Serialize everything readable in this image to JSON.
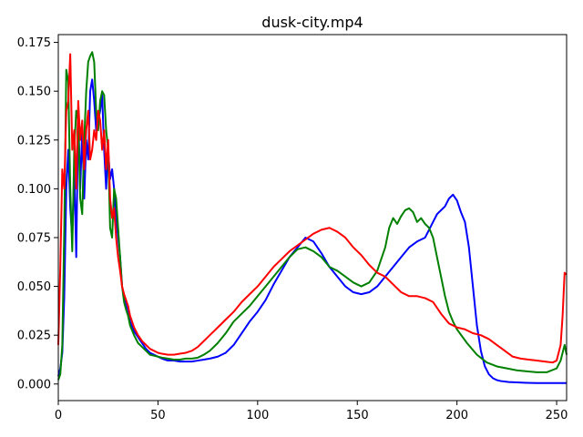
{
  "chart_data": {
    "type": "line",
    "title": "dusk-city.mp4",
    "xlabel": "",
    "ylabel": "",
    "xlim": [
      0,
      255
    ],
    "ylim": [
      -0.0085,
      0.179
    ],
    "grid": false,
    "legend": "none",
    "x_ticks": [
      0,
      50,
      100,
      150,
      200,
      250
    ],
    "x_tick_labels": [
      "0",
      "50",
      "100",
      "150",
      "200",
      "250"
    ],
    "y_ticks": [
      0.0,
      0.025,
      0.05,
      0.075,
      0.1,
      0.125,
      0.15,
      0.175
    ],
    "y_tick_labels": [
      "0.000",
      "0.025",
      "0.050",
      "0.075",
      "0.100",
      "0.125",
      "0.150",
      "0.175"
    ],
    "series": [
      {
        "color": "#0000ff",
        "x": [
          0,
          1,
          2,
          3,
          4,
          5,
          6,
          7,
          8,
          9,
          10,
          11,
          12,
          13,
          14,
          15,
          16,
          17,
          18,
          19,
          20,
          21,
          22,
          23,
          24,
          25,
          26,
          27,
          28,
          29,
          30,
          31,
          32,
          33,
          34,
          35,
          36,
          38,
          40,
          42,
          44,
          46,
          48,
          50,
          52,
          55,
          58,
          61,
          64,
          67,
          70,
          73,
          76,
          80,
          84,
          88,
          92,
          96,
          100,
          104,
          108,
          112,
          116,
          120,
          124,
          128,
          132,
          136,
          140,
          144,
          148,
          152,
          156,
          160,
          164,
          168,
          172,
          176,
          180,
          184,
          186,
          188,
          190,
          192,
          194,
          196,
          198,
          200,
          202,
          204,
          206,
          208,
          210,
          212,
          214,
          216,
          218,
          220,
          222,
          226,
          230,
          235,
          240,
          245,
          250,
          255
        ],
        "y": [
          0.004,
          0.008,
          0.016,
          0.045,
          0.1,
          0.12,
          0.09,
          0.075,
          0.11,
          0.065,
          0.14,
          0.1,
          0.13,
          0.095,
          0.125,
          0.115,
          0.15,
          0.156,
          0.145,
          0.13,
          0.135,
          0.14,
          0.148,
          0.12,
          0.1,
          0.12,
          0.105,
          0.11,
          0.1,
          0.085,
          0.075,
          0.065,
          0.05,
          0.045,
          0.04,
          0.038,
          0.032,
          0.027,
          0.024,
          0.021,
          0.018,
          0.016,
          0.015,
          0.014,
          0.013,
          0.012,
          0.012,
          0.0115,
          0.0115,
          0.0115,
          0.012,
          0.0125,
          0.013,
          0.014,
          0.016,
          0.02,
          0.026,
          0.032,
          0.037,
          0.043,
          0.051,
          0.058,
          0.065,
          0.07,
          0.075,
          0.073,
          0.067,
          0.06,
          0.055,
          0.05,
          0.047,
          0.046,
          0.047,
          0.05,
          0.055,
          0.06,
          0.065,
          0.07,
          0.073,
          0.075,
          0.079,
          0.083,
          0.087,
          0.089,
          0.091,
          0.095,
          0.097,
          0.094,
          0.088,
          0.083,
          0.07,
          0.05,
          0.03,
          0.017,
          0.009,
          0.005,
          0.003,
          0.002,
          0.0015,
          0.001,
          0.0008,
          0.0006,
          0.0005,
          0.0005,
          0.0005,
          0.0005
        ]
      },
      {
        "color": "#008000",
        "x": [
          0,
          1,
          2,
          3,
          4,
          5,
          6,
          7,
          8,
          9,
          10,
          11,
          12,
          13,
          14,
          15,
          16,
          17,
          18,
          19,
          20,
          21,
          22,
          23,
          24,
          25,
          26,
          27,
          28,
          29,
          30,
          31,
          32,
          33,
          34,
          35,
          36,
          38,
          40,
          42,
          44,
          46,
          48,
          50,
          52,
          55,
          58,
          61,
          64,
          67,
          70,
          73,
          76,
          80,
          84,
          88,
          92,
          96,
          100,
          104,
          108,
          112,
          116,
          120,
          124,
          128,
          132,
          136,
          140,
          144,
          148,
          152,
          156,
          160,
          164,
          166,
          168,
          170,
          172,
          174,
          176,
          178,
          180,
          182,
          184,
          186,
          188,
          190,
          192,
          194,
          196,
          198,
          200,
          205,
          210,
          215,
          220,
          225,
          230,
          235,
          240,
          245,
          250,
          252,
          254,
          255
        ],
        "y": [
          0.002,
          0.005,
          0.02,
          0.08,
          0.161,
          0.155,
          0.1,
          0.068,
          0.12,
          0.14,
          0.135,
          0.095,
          0.087,
          0.125,
          0.15,
          0.165,
          0.168,
          0.17,
          0.165,
          0.14,
          0.13,
          0.145,
          0.15,
          0.148,
          0.13,
          0.12,
          0.08,
          0.075,
          0.1,
          0.095,
          0.08,
          0.065,
          0.05,
          0.042,
          0.038,
          0.035,
          0.03,
          0.025,
          0.021,
          0.019,
          0.017,
          0.015,
          0.0145,
          0.014,
          0.0135,
          0.013,
          0.0125,
          0.0125,
          0.013,
          0.013,
          0.0135,
          0.015,
          0.017,
          0.021,
          0.026,
          0.032,
          0.036,
          0.04,
          0.045,
          0.05,
          0.055,
          0.06,
          0.065,
          0.069,
          0.07,
          0.068,
          0.065,
          0.06,
          0.058,
          0.055,
          0.052,
          0.05,
          0.052,
          0.058,
          0.07,
          0.08,
          0.085,
          0.082,
          0.086,
          0.089,
          0.09,
          0.088,
          0.083,
          0.085,
          0.082,
          0.08,
          0.075,
          0.065,
          0.055,
          0.045,
          0.037,
          0.032,
          0.028,
          0.021,
          0.015,
          0.011,
          0.009,
          0.008,
          0.007,
          0.0065,
          0.006,
          0.006,
          0.008,
          0.012,
          0.02,
          0.015
        ]
      },
      {
        "color": "#ff0000",
        "x": [
          0,
          1,
          2,
          3,
          4,
          5,
          6,
          7,
          8,
          9,
          10,
          11,
          12,
          13,
          14,
          15,
          16,
          17,
          18,
          19,
          20,
          21,
          22,
          23,
          24,
          25,
          26,
          27,
          28,
          29,
          30,
          31,
          32,
          33,
          34,
          35,
          36,
          38,
          40,
          42,
          44,
          46,
          48,
          50,
          52,
          55,
          58,
          61,
          64,
          67,
          70,
          73,
          76,
          80,
          84,
          88,
          92,
          96,
          100,
          104,
          108,
          112,
          116,
          120,
          124,
          128,
          132,
          136,
          140,
          144,
          148,
          152,
          156,
          160,
          164,
          168,
          172,
          176,
          180,
          184,
          188,
          192,
          196,
          200,
          204,
          208,
          212,
          216,
          220,
          224,
          228,
          232,
          236,
          240,
          244,
          248,
          250,
          252,
          253,
          254,
          255
        ],
        "y": [
          0.02,
          0.06,
          0.11,
          0.1,
          0.14,
          0.145,
          0.169,
          0.12,
          0.13,
          0.1,
          0.145,
          0.125,
          0.135,
          0.11,
          0.13,
          0.14,
          0.115,
          0.12,
          0.13,
          0.125,
          0.14,
          0.135,
          0.12,
          0.13,
          0.11,
          0.125,
          0.095,
          0.085,
          0.09,
          0.075,
          0.065,
          0.058,
          0.05,
          0.046,
          0.043,
          0.04,
          0.035,
          0.029,
          0.025,
          0.022,
          0.02,
          0.018,
          0.017,
          0.016,
          0.0155,
          0.015,
          0.015,
          0.0155,
          0.016,
          0.017,
          0.019,
          0.022,
          0.025,
          0.029,
          0.033,
          0.037,
          0.042,
          0.046,
          0.05,
          0.055,
          0.06,
          0.064,
          0.068,
          0.071,
          0.074,
          0.077,
          0.079,
          0.08,
          0.078,
          0.075,
          0.07,
          0.066,
          0.061,
          0.057,
          0.055,
          0.051,
          0.047,
          0.045,
          0.045,
          0.044,
          0.042,
          0.036,
          0.031,
          0.029,
          0.028,
          0.026,
          0.025,
          0.023,
          0.02,
          0.017,
          0.014,
          0.013,
          0.0125,
          0.012,
          0.0115,
          0.011,
          0.012,
          0.02,
          0.035,
          0.057,
          0.056
        ]
      }
    ]
  }
}
